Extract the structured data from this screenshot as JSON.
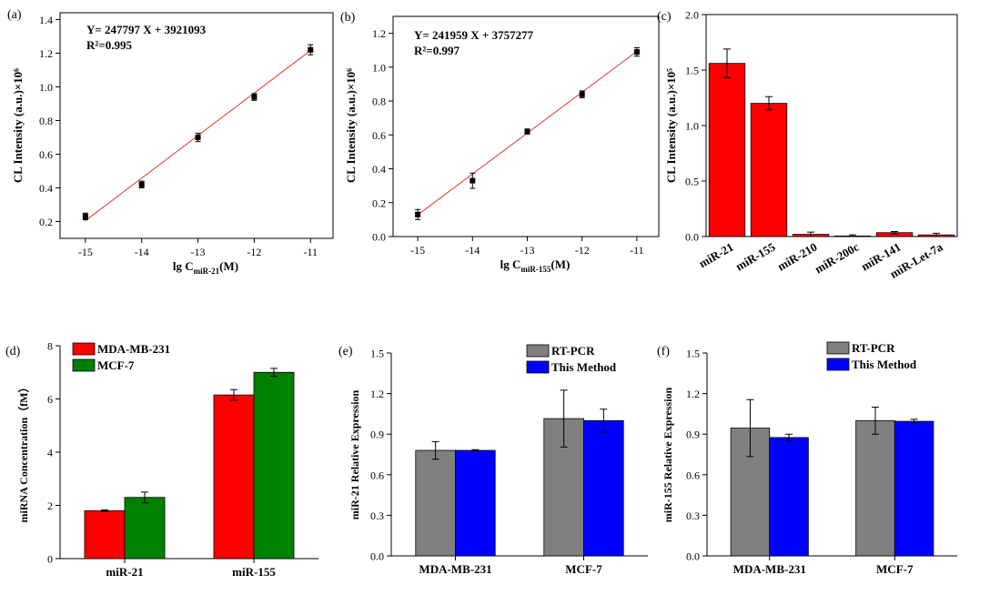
{
  "figure": {
    "panels": [
      {
        "id": "a",
        "label": "(a)",
        "equation": "Y= 247797 X + 3921093",
        "r2": "R²=0.995",
        "ylabel": "CL Intensity (a.u.)×10⁶",
        "xlabel": "lg CmiR-21(M)",
        "xlabel_main": "lg C",
        "xlabel_sub": "miR-21",
        "xlabel_tail": "(M)"
      },
      {
        "id": "b",
        "label": "(b)",
        "equation": "Y= 241959 X + 3757277",
        "r2": "R²=0.997",
        "ylabel": "CL Intensity (a.u.)×10⁶",
        "xlabel": "lg CmiR-155(M)",
        "xlabel_main": "lg C",
        "xlabel_sub": "miR-155",
        "xlabel_tail": "(M)"
      },
      {
        "id": "c",
        "label": "(c)",
        "ylabel": "CL Intensity (a.u.)×10⁵"
      },
      {
        "id": "d",
        "label": "(d)",
        "ylabel": "miRNA Concentration（fM）"
      },
      {
        "id": "e",
        "label": "(e)",
        "ylabel": "miR-21 Relative Expression"
      },
      {
        "id": "f",
        "label": "(f)",
        "ylabel": "miR-155 Relative Expression"
      }
    ]
  },
  "colors": {
    "red": "#ff0000",
    "green": "#008000",
    "gray": "#808080",
    "blue": "#0000ff",
    "fit_line": "#e8372c",
    "marker": "#000000"
  },
  "chart_data": [
    {
      "panel": "a",
      "type": "scatter",
      "title": "",
      "xlabel": "lg CmiR-21(M)",
      "ylabel": "CL Intensity (a.u.)×10⁶",
      "x": [
        -15,
        -14,
        -13,
        -12,
        -11
      ],
      "y": [
        0.23,
        0.42,
        0.7,
        0.94,
        1.22
      ],
      "error": [
        0.02,
        0.02,
        0.025,
        0.02,
        0.03
      ],
      "fit": {
        "x": [
          -15,
          -11
        ],
        "y": [
          0.205,
          1.216
        ]
      },
      "xticks": [
        -15,
        -14,
        -13,
        -12,
        -11
      ],
      "yticks": [
        0.2,
        0.4,
        0.6,
        0.8,
        1.0,
        1.2,
        1.4
      ],
      "ytick_labels": [
        "0.2",
        "0.4",
        "0.6",
        "0.8",
        "1.0",
        "1.2",
        "1.4"
      ],
      "xlim": [
        -15.45,
        -10.6
      ],
      "ylim": [
        0.1,
        1.44
      ],
      "legend": "none"
    },
    {
      "panel": "b",
      "type": "scatter",
      "title": "",
      "xlabel": "lg CmiR-155(M)",
      "ylabel": "CL Intensity (a.u.)×10⁶",
      "x": [
        -15,
        -14,
        -13,
        -12,
        -11
      ],
      "y": [
        0.13,
        0.33,
        0.62,
        0.84,
        1.09
      ],
      "error": [
        0.03,
        0.045,
        0.015,
        0.02,
        0.025
      ],
      "fit": {
        "x": [
          -15,
          -11
        ],
        "y": [
          0.128,
          1.094
        ]
      },
      "xticks": [
        -15,
        -14,
        -13,
        -12,
        -11
      ],
      "yticks": [
        0.0,
        0.2,
        0.4,
        0.6,
        0.8,
        1.0,
        1.2
      ],
      "ytick_labels": [
        "0.0",
        "0.2",
        "0.4",
        "0.6",
        "0.8",
        "1.0",
        "1.2"
      ],
      "xlim": [
        -15.45,
        -10.6
      ],
      "ylim": [
        0,
        1.3
      ],
      "legend": "none"
    },
    {
      "panel": "c",
      "type": "bar",
      "title": "",
      "xlabel": "",
      "ylabel": "CL Intensity (a.u.)×10⁵",
      "categories": [
        "miR-21",
        "miR-155",
        "miR-210",
        "miR-200c",
        "miR-141",
        "miR-Let-7a"
      ],
      "series": [
        {
          "values": [
            1.56,
            1.2,
            0.02,
            0.005,
            0.035,
            0.015
          ],
          "error": [
            0.13,
            0.06,
            0.02,
            0.01,
            0.01,
            0.015
          ]
        }
      ],
      "yticks": [
        0.0,
        0.5,
        1.0,
        1.5,
        2.0
      ],
      "ytick_labels": [
        "0.0",
        "0.5",
        "1.0",
        "1.5",
        "2.0"
      ],
      "ylim": [
        0,
        2.0
      ],
      "legend": "none"
    },
    {
      "panel": "d",
      "type": "bar",
      "title": "",
      "xlabel": "",
      "ylabel": "miRNA Concentration（fM）",
      "categories": [
        "miR-21",
        "miR-155"
      ],
      "series": [
        {
          "name": "MDA-MB-231",
          "values": [
            1.8,
            6.15
          ],
          "error": [
            0.03,
            0.2
          ]
        },
        {
          "name": "MCF-7",
          "values": [
            2.3,
            7.0
          ],
          "error": [
            0.2,
            0.15
          ]
        }
      ],
      "yticks": [
        0,
        2,
        4,
        6,
        8
      ],
      "ytick_labels": [
        "0",
        "2",
        "4",
        "6",
        "8"
      ],
      "ylim": [
        0,
        8
      ],
      "legend": "top-left"
    },
    {
      "panel": "e",
      "type": "bar",
      "title": "",
      "xlabel": "",
      "ylabel": "miR-21 Relative Expression",
      "categories": [
        "MDA-MB-231",
        "MCF-7"
      ],
      "series": [
        {
          "name": "RT-PCR",
          "values": [
            0.78,
            1.015
          ],
          "error": [
            0.065,
            0.21
          ]
        },
        {
          "name": "This Method",
          "values": [
            0.78,
            1.0
          ],
          "error": [
            0.005,
            0.085
          ]
        }
      ],
      "yticks": [
        0.0,
        0.3,
        0.6,
        0.9,
        1.2,
        1.5
      ],
      "ytick_labels": [
        "0.0",
        "0.3",
        "0.6",
        "0.9",
        "1.2",
        "1.5"
      ],
      "ylim": [
        0,
        1.5
      ],
      "legend": "top-center"
    },
    {
      "panel": "f",
      "type": "bar",
      "title": "",
      "xlabel": "",
      "ylabel": "miR-155 Relative Expression",
      "categories": [
        "MDA-MB-231",
        "MCF-7"
      ],
      "series": [
        {
          "name": "RT-PCR",
          "values": [
            0.945,
            1.0
          ],
          "error": [
            0.21,
            0.1
          ]
        },
        {
          "name": "This Method",
          "values": [
            0.875,
            0.995
          ],
          "error": [
            0.025,
            0.015
          ]
        }
      ],
      "yticks": [
        0.0,
        0.3,
        0.6,
        0.9,
        1.2,
        1.5
      ],
      "ytick_labels": [
        "0.0",
        "0.3",
        "0.6",
        "0.9",
        "1.2",
        "1.5"
      ],
      "ylim": [
        0,
        1.5
      ],
      "legend": "top-center"
    }
  ]
}
